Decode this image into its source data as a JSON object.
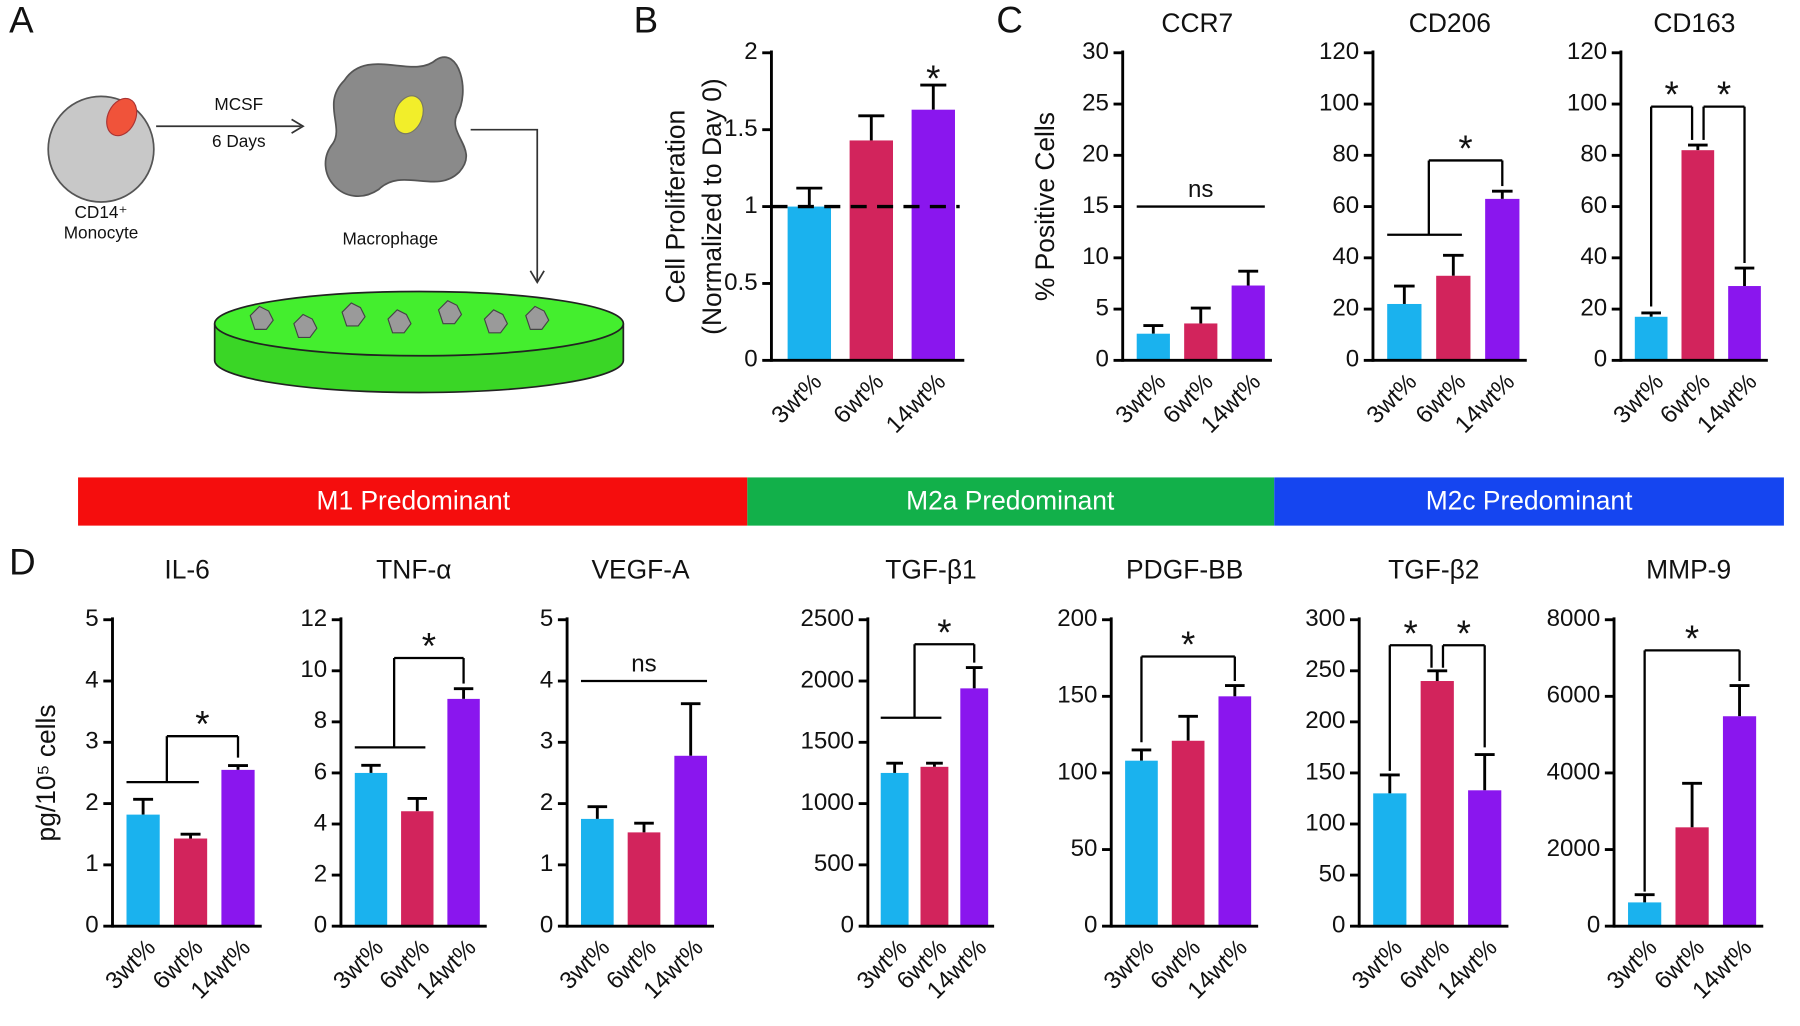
{
  "panels": [
    "A",
    "B",
    "C",
    "D"
  ],
  "diagram": {
    "mcsf": "MCSF",
    "days": "6 Days",
    "cell": "CD14⁺",
    "monocyte": "Monocyte",
    "macrophage": "Macrophage"
  },
  "bands": [
    "M1 Predominant",
    "M2a Predominant",
    "M2c Predominant"
  ],
  "chart_data": [
    {
      "type": "bar",
      "ylabel": [
        "Cell Proliferation",
        "(Normalized to Day 0)"
      ],
      "categories": [
        "3wt%",
        "6wt%",
        "14wt%"
      ],
      "values": [
        1.0,
        1.43,
        1.63
      ],
      "errors": [
        0.12,
        0.16,
        0.16
      ],
      "colors": [
        "#1ab2ee",
        "#d2245c",
        "#8a16ee"
      ],
      "ylim": [
        0,
        2
      ],
      "yticks": [
        0,
        0.5,
        1,
        1.5,
        2
      ],
      "reference_line": 1,
      "annotations": [
        "*"
      ]
    },
    {
      "type": "bar",
      "title": "CCR7",
      "ylabel": [
        "% Positive Cells"
      ],
      "categories": [
        "3wt%",
        "6wt%",
        "14wt%"
      ],
      "values": [
        2.6,
        3.6,
        7.3
      ],
      "errors": [
        0.8,
        1.5,
        1.4
      ],
      "colors": [
        "#1ab2ee",
        "#d2245c",
        "#8a16ee"
      ],
      "ylim": [
        0,
        30
      ],
      "yticks": [
        0,
        5,
        10,
        15,
        20,
        25,
        30
      ],
      "annotations": [
        "ns"
      ]
    },
    {
      "type": "bar",
      "title": "CD206",
      "categories": [
        "3wt%",
        "6wt%",
        "14wt%"
      ],
      "values": [
        22,
        33,
        63
      ],
      "errors": [
        7,
        8,
        3
      ],
      "colors": [
        "#1ab2ee",
        "#d2245c",
        "#8a16ee"
      ],
      "ylim": [
        0,
        120
      ],
      "yticks": [
        0,
        20,
        40,
        60,
        80,
        100,
        120
      ],
      "annotations": [
        "*"
      ]
    },
    {
      "type": "bar",
      "title": "CD163",
      "categories": [
        "3wt%",
        "6wt%",
        "14wt%"
      ],
      "values": [
        17,
        82,
        29
      ],
      "errors": [
        1.5,
        2,
        7
      ],
      "colors": [
        "#1ab2ee",
        "#d2245c",
        "#8a16ee"
      ],
      "ylim": [
        0,
        120
      ],
      "yticks": [
        0,
        20,
        40,
        60,
        80,
        100,
        120
      ],
      "annotations": [
        "*",
        "*"
      ]
    },
    {
      "type": "bar",
      "title": "IL-6",
      "ylabel": [
        "pg/10⁵ cells"
      ],
      "categories": [
        "3wt%",
        "6wt%",
        "14wt%"
      ],
      "values": [
        1.82,
        1.43,
        2.55
      ],
      "errors": [
        0.25,
        0.07,
        0.07
      ],
      "colors": [
        "#1ab2ee",
        "#d2245c",
        "#8a16ee"
      ],
      "ylim": [
        0,
        5
      ],
      "yticks": [
        0,
        1,
        2,
        3,
        4,
        5
      ],
      "annotations": [
        "*"
      ]
    },
    {
      "type": "bar",
      "title": "TNF-α",
      "categories": [
        "3wt%",
        "6wt%",
        "14wt%"
      ],
      "values": [
        6.0,
        4.5,
        8.9
      ],
      "errors": [
        0.3,
        0.5,
        0.4
      ],
      "colors": [
        "#1ab2ee",
        "#d2245c",
        "#8a16ee"
      ],
      "ylim": [
        0,
        12
      ],
      "yticks": [
        0,
        2,
        4,
        6,
        8,
        10,
        12
      ],
      "annotations": [
        "*"
      ]
    },
    {
      "type": "bar",
      "title": "VEGF-A",
      "categories": [
        "3wt%",
        "6wt%",
        "14wt%"
      ],
      "values": [
        1.75,
        1.53,
        2.78
      ],
      "errors": [
        0.2,
        0.15,
        0.85
      ],
      "colors": [
        "#1ab2ee",
        "#d2245c",
        "#8a16ee"
      ],
      "ylim": [
        0,
        5
      ],
      "yticks": [
        0,
        1,
        2,
        3,
        4,
        5
      ],
      "annotations": [
        "ns"
      ]
    },
    {
      "type": "bar",
      "title": "TGF-β1",
      "categories": [
        "3wt%",
        "6wt%",
        "14wt%"
      ],
      "values": [
        1250,
        1300,
        1940
      ],
      "errors": [
        80,
        30,
        170
      ],
      "colors": [
        "#1ab2ee",
        "#d2245c",
        "#8a16ee"
      ],
      "ylim": [
        0,
        2500
      ],
      "yticks": [
        0,
        500,
        1000,
        1500,
        2000,
        2500
      ],
      "annotations": [
        "*"
      ]
    },
    {
      "type": "bar",
      "title": "PDGF-BB",
      "categories": [
        "3wt%",
        "6wt%",
        "14wt%"
      ],
      "values": [
        108,
        121,
        150
      ],
      "errors": [
        7,
        16,
        7
      ],
      "colors": [
        "#1ab2ee",
        "#d2245c",
        "#8a16ee"
      ],
      "ylim": [
        0,
        200
      ],
      "yticks": [
        0,
        50,
        100,
        150,
        200
      ],
      "annotations": [
        "*"
      ]
    },
    {
      "type": "bar",
      "title": "TGF-β2",
      "categories": [
        "3wt%",
        "6wt%",
        "14wt%"
      ],
      "values": [
        130,
        240,
        133
      ],
      "errors": [
        18,
        10,
        35
      ],
      "colors": [
        "#1ab2ee",
        "#d2245c",
        "#8a16ee"
      ],
      "ylim": [
        0,
        300
      ],
      "yticks": [
        0,
        50,
        100,
        150,
        200,
        250,
        300
      ],
      "annotations": [
        "*",
        "*"
      ]
    },
    {
      "type": "bar",
      "title": "MMP-9",
      "categories": [
        "3wt%",
        "6wt%",
        "14wt%"
      ],
      "values": [
        620,
        2580,
        5480
      ],
      "errors": [
        200,
        1150,
        800
      ],
      "colors": [
        "#1ab2ee",
        "#d2245c",
        "#8a16ee"
      ],
      "ylim": [
        0,
        8000
      ],
      "yticks": [
        0,
        2000,
        4000,
        6000,
        8000
      ],
      "annotations": [
        "*"
      ]
    }
  ]
}
